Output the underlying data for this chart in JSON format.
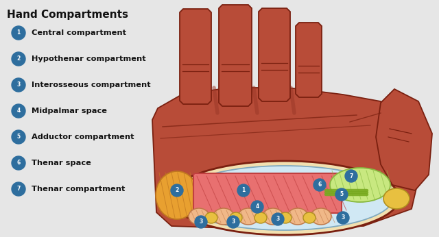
{
  "title": "Hand Compartments",
  "background_color": "#e6e6e6",
  "legend_items": [
    {
      "num": "1",
      "label": "Central compartment"
    },
    {
      "num": "2",
      "label": "Hypothenar compartment"
    },
    {
      "num": "3",
      "label": "Interosseous compartment"
    },
    {
      "num": "4",
      "label": "Midpalmar space"
    },
    {
      "num": "5",
      "label": "Adductor compartment"
    },
    {
      "num": "6",
      "label": "Thenar space"
    },
    {
      "num": "7",
      "label": "Thenar compartment"
    }
  ],
  "badge_color": "#2e6e9e",
  "badge_text_color": "#ffffff",
  "label_text_color": "#111111",
  "hand_skin": "#b84c38",
  "hand_shadow": "#9a3828",
  "hand_outline": "#7a2010",
  "palm_outer": "#f2e0b0",
  "palm_inner": "#d0e8f4",
  "central_fill": "#e87070",
  "central_stroke": "#c04040",
  "hypothenar_fill": "#e8a030",
  "hypothenar_stroke": "#c07820",
  "inteross_fill": "#f0b888",
  "inteross_stroke": "#c07848",
  "thenar_comp_fill": "#c8e880",
  "thenar_comp_stroke": "#88b840",
  "tendon_color": "#78aa20",
  "gold_oval": "#e8c040",
  "gold_oval_stroke": "#b09020"
}
